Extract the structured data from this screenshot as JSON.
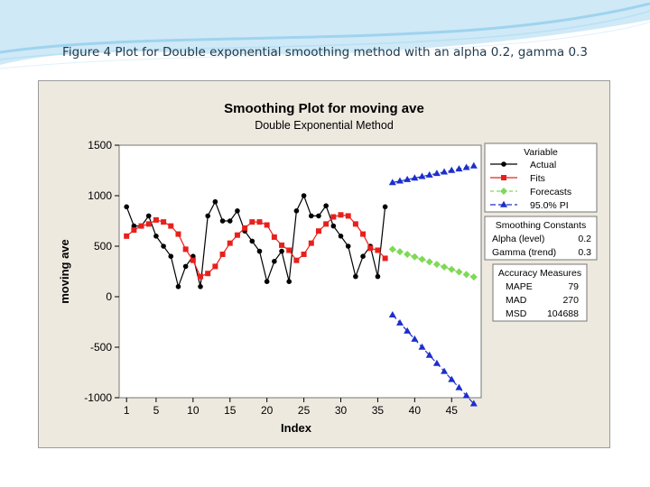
{
  "slide": {
    "caption": "Figure 4 Plot for Double exponential smoothing method with an alpha 0.2, gamma 0.3"
  },
  "chart_data": {
    "type": "line",
    "title": "Smoothing Plot for moving ave",
    "subtitle": "Double Exponential Method",
    "xlabel": "Index",
    "ylabel": "moving ave",
    "xlim": [
      0,
      49
    ],
    "ylim": [
      -1000,
      1500
    ],
    "x_ticks": [
      1,
      5,
      10,
      15,
      20,
      25,
      30,
      35,
      40,
      45
    ],
    "y_ticks": [
      -1000,
      -500,
      0,
      500,
      1000,
      1500
    ],
    "y_tick_labels": [
      "-1000",
      "-500",
      "0",
      "500",
      "1000",
      "1500"
    ],
    "grid": false,
    "legend_title": "Variable",
    "series": [
      {
        "name": "Actual",
        "color": "#000000",
        "marker": "circle",
        "x": [
          1,
          2,
          3,
          4,
          5,
          6,
          7,
          8,
          9,
          10,
          11,
          12,
          13,
          14,
          15,
          16,
          17,
          18,
          19,
          20,
          21,
          22,
          23,
          24,
          25,
          26,
          27,
          28,
          29,
          30,
          31,
          32,
          33,
          34,
          35,
          36
        ],
        "values": [
          890,
          700,
          700,
          800,
          600,
          500,
          400,
          100,
          300,
          400,
          100,
          800,
          940,
          750,
          750,
          850,
          650,
          550,
          450,
          150,
          350,
          450,
          150,
          850,
          1000,
          800,
          800,
          900,
          700,
          600,
          500,
          200,
          400,
          500,
          200,
          890
        ]
      },
      {
        "name": "Fits",
        "color": "#e8201c",
        "marker": "square",
        "x": [
          1,
          2,
          3,
          4,
          5,
          6,
          7,
          8,
          9,
          10,
          11,
          12,
          13,
          14,
          15,
          16,
          17,
          18,
          19,
          20,
          21,
          22,
          23,
          24,
          25,
          26,
          27,
          28,
          29,
          30,
          31,
          32,
          33,
          34,
          35,
          36
        ],
        "values": [
          600,
          660,
          700,
          720,
          760,
          740,
          700,
          620,
          470,
          360,
          200,
          230,
          300,
          420,
          530,
          610,
          680,
          740,
          740,
          710,
          590,
          510,
          460,
          360,
          420,
          530,
          650,
          720,
          790,
          810,
          800,
          720,
          620,
          480,
          460,
          380
        ]
      },
      {
        "name": "Forecasts",
        "color": "#7ed957",
        "marker": "diamond",
        "x": [
          37,
          38,
          39,
          40,
          41,
          42,
          43,
          44,
          45,
          46,
          47,
          48
        ],
        "values": [
          470,
          445,
          420,
          395,
          370,
          345,
          320,
          295,
          270,
          245,
          220,
          195
        ]
      },
      {
        "name": "95.0% PI",
        "color": "#1c2ecc",
        "marker": "triangle",
        "x": [
          37,
          38,
          39,
          40,
          41,
          42,
          43,
          44,
          45,
          46,
          47,
          48
        ],
        "upper": [
          1130,
          1145,
          1160,
          1175,
          1190,
          1205,
          1220,
          1235,
          1250,
          1265,
          1280,
          1295
        ],
        "lower": [
          -180,
          -260,
          -340,
          -420,
          -500,
          -580,
          -660,
          -740,
          -820,
          -900,
          -980,
          -1060
        ]
      }
    ],
    "smoothing_constants": {
      "title": "Smoothing Constants",
      "rows": [
        {
          "label": "Alpha (level)",
          "value": "0.2"
        },
        {
          "label": "Gamma (trend)",
          "value": "0.3"
        }
      ]
    },
    "accuracy_measures": {
      "title": "Accuracy Measures",
      "rows": [
        {
          "label": "MAPE",
          "value": "79"
        },
        {
          "label": "MAD",
          "value": "270"
        },
        {
          "label": "MSD",
          "value": "104688"
        }
      ]
    }
  }
}
